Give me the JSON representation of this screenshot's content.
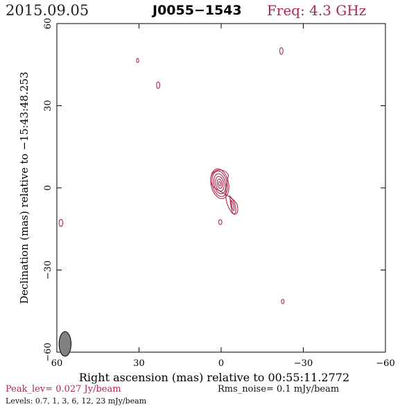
{
  "header": {
    "date": "2015.09.05",
    "source": "J0055−1543",
    "frequency": "Freq: 4.3 GHz"
  },
  "footer": {
    "peak": "Peak_lev=  0.027 Jy/beam",
    "rms": "Rms_noise=   0.1 mJy/beam",
    "levels": "Levels: 0.7,    1,    3,    6,   12,   23 mJy/beam"
  },
  "colors": {
    "contour": "#b0284a",
    "axis": "#000000",
    "beam": "#808080"
  },
  "chart_data": {
    "type": "contour",
    "title": "J0055−1543",
    "xlabel": "Right ascension (mas) relative to 00:55:11.2772",
    "ylabel": "Declination (mas) relative to −15:43:48.253",
    "xlim": [
      60,
      -60
    ],
    "ylim": [
      -60,
      60
    ],
    "xticks": [
      60,
      30,
      0,
      -30,
      -60
    ],
    "yticks": [
      60,
      30,
      0,
      -30,
      -60
    ],
    "xticklabels": [
      "60",
      "30",
      "0",
      "−30",
      "−60"
    ],
    "yticklabels": [
      "60",
      "30",
      "0",
      "−30",
      "−60"
    ],
    "levels_mJy_per_beam": [
      0.7,
      1,
      3,
      6,
      12,
      23
    ],
    "peak_Jy_per_beam": 0.027,
    "rms_mJy_per_beam": 0.1,
    "beam": {
      "x": 57,
      "y": -57,
      "major_mas": 4.5,
      "minor_mas": 2.2,
      "pa_deg": 0
    },
    "core": {
      "x": 0.5,
      "y": 1.5,
      "levels": [
        {
          "rx": 3.2,
          "ry": 5.5
        },
        {
          "rx": 2.7,
          "ry": 4.7
        },
        {
          "rx": 2.1,
          "ry": 3.7
        },
        {
          "rx": 1.5,
          "ry": 2.7
        },
        {
          "rx": 0.9,
          "ry": 1.7
        },
        {
          "rx": 0.4,
          "ry": 0.8
        }
      ]
    },
    "jet": [
      {
        "x": -3.5,
        "y": -4.5
      },
      {
        "x": -4.2,
        "y": -7
      },
      {
        "x": -4.8,
        "y": -9
      }
    ],
    "noise_blobs": [
      {
        "x": -22,
        "y": 50,
        "rx": 0.6,
        "ry": 1.2
      },
      {
        "x": 30.5,
        "y": 46.5,
        "rx": 0.4,
        "ry": 0.8
      },
      {
        "x": 23,
        "y": 37.5,
        "rx": 0.6,
        "ry": 1.2
      },
      {
        "x": 58.5,
        "y": -12.8,
        "rx": 0.7,
        "ry": 1.3
      },
      {
        "x": 0.3,
        "y": -12.5,
        "rx": 0.6,
        "ry": 0.9
      },
      {
        "x": -22.5,
        "y": -41.5,
        "rx": 0.5,
        "ry": 0.8
      }
    ]
  }
}
